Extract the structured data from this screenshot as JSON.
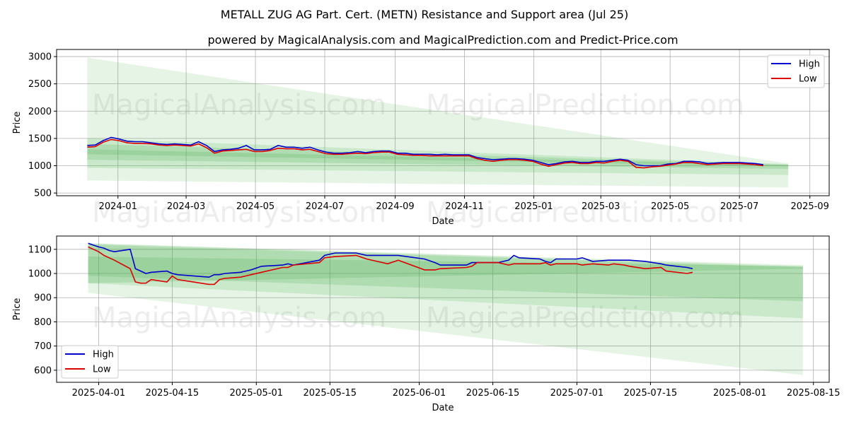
{
  "title": "METALL ZUG AG Part. Cert. (METN) Resistance and Support area (Jul 25)",
  "subtitle": "powered by MagicalAnalysis.com and MagicalPrediction.com and Predict-Price.com",
  "watermarks": [
    "MagicalAnalysis.com",
    "MagicalPrediction.com"
  ],
  "colors": {
    "high": "#0000cc",
    "low": "#dd0000",
    "band": "#4caf50",
    "grid": "#b0b0b0"
  },
  "chart_data": [
    {
      "type": "line",
      "xlabel": "Date",
      "ylabel": "Price",
      "xlim": [
        "2023-11-08",
        "2025-09-18"
      ],
      "ylim": [
        450,
        3130
      ],
      "xticks": [
        "2024-01",
        "2024-03",
        "2024-05",
        "2024-07",
        "2024-09",
        "2024-11",
        "2025-01",
        "2025-03",
        "2025-05",
        "2025-07",
        "2025-09"
      ],
      "yticks": [
        500,
        1000,
        1500,
        2000,
        2500,
        3000
      ],
      "legend": {
        "position": "top-right",
        "entries": [
          "High",
          "Low"
        ]
      },
      "grid": true,
      "bands": [
        {
          "x": [
            "2023-12-05",
            "2025-08-13"
          ],
          "upper": [
            2980,
            1040
          ],
          "lower": [
            730,
            600
          ],
          "opacity": 0.14
        },
        {
          "x": [
            "2023-12-05",
            "2025-08-13"
          ],
          "upper": [
            1500,
            1030
          ],
          "lower": [
            960,
            830
          ],
          "opacity": 0.18
        },
        {
          "x": [
            "2023-12-05",
            "2025-08-13"
          ],
          "upper": [
            1400,
            1020
          ],
          "lower": [
            1110,
            940
          ],
          "opacity": 0.2
        },
        {
          "x": [
            "2023-12-05",
            "2025-08-13"
          ],
          "upper": [
            1300,
            1010
          ],
          "lower": [
            1210,
            990
          ],
          "opacity": 0.22
        }
      ],
      "series": [
        {
          "name": "High",
          "x": [
            "2023-12-05",
            "2023-12-12",
            "2023-12-19",
            "2023-12-26",
            "2024-01-02",
            "2024-01-09",
            "2024-01-16",
            "2024-01-23",
            "2024-01-30",
            "2024-02-06",
            "2024-02-13",
            "2024-02-20",
            "2024-02-27",
            "2024-03-05",
            "2024-03-12",
            "2024-03-19",
            "2024-03-26",
            "2024-04-02",
            "2024-04-09",
            "2024-04-16",
            "2024-04-23",
            "2024-04-30",
            "2024-05-07",
            "2024-05-14",
            "2024-05-21",
            "2024-05-28",
            "2024-06-04",
            "2024-06-11",
            "2024-06-18",
            "2024-06-25",
            "2024-07-02",
            "2024-07-09",
            "2024-07-16",
            "2024-07-23",
            "2024-07-30",
            "2024-08-06",
            "2024-08-13",
            "2024-08-20",
            "2024-08-27",
            "2024-09-03",
            "2024-09-10",
            "2024-09-17",
            "2024-09-24",
            "2024-10-01",
            "2024-10-08",
            "2024-10-15",
            "2024-10-22",
            "2024-10-29",
            "2024-11-05",
            "2024-11-12",
            "2024-11-19",
            "2024-11-26",
            "2024-12-03",
            "2024-12-10",
            "2024-12-17",
            "2024-12-24",
            "2024-12-31",
            "2025-01-07",
            "2025-01-14",
            "2025-01-21",
            "2025-01-28",
            "2025-02-04",
            "2025-02-11",
            "2025-02-18",
            "2025-02-25",
            "2025-03-04",
            "2025-03-11",
            "2025-03-18",
            "2025-03-25",
            "2025-04-01",
            "2025-04-08",
            "2025-04-15",
            "2025-04-22",
            "2025-04-29",
            "2025-05-06",
            "2025-05-13",
            "2025-05-20",
            "2025-05-27",
            "2025-06-03",
            "2025-06-10",
            "2025-06-17",
            "2025-06-24",
            "2025-07-01",
            "2025-07-08",
            "2025-07-15",
            "2025-07-22"
          ],
          "y": [
            1370,
            1380,
            1460,
            1520,
            1490,
            1450,
            1440,
            1440,
            1420,
            1400,
            1390,
            1400,
            1390,
            1380,
            1440,
            1370,
            1260,
            1290,
            1300,
            1320,
            1370,
            1290,
            1290,
            1300,
            1370,
            1340,
            1340,
            1320,
            1340,
            1290,
            1250,
            1230,
            1230,
            1240,
            1260,
            1240,
            1260,
            1270,
            1270,
            1230,
            1230,
            1210,
            1210,
            1210,
            1200,
            1210,
            1200,
            1200,
            1200,
            1150,
            1130,
            1110,
            1120,
            1130,
            1130,
            1120,
            1100,
            1060,
            1020,
            1040,
            1070,
            1080,
            1060,
            1060,
            1080,
            1080,
            1100,
            1120,
            1100,
            1020,
            1000,
            1000,
            1000,
            1030,
            1040,
            1080,
            1080,
            1070,
            1040,
            1050,
            1060,
            1060,
            1060,
            1050,
            1040,
            1020
          ]
        },
        {
          "name": "Low",
          "x": [
            "2023-12-05",
            "2023-12-12",
            "2023-12-19",
            "2023-12-26",
            "2024-01-02",
            "2024-01-09",
            "2024-01-16",
            "2024-01-23",
            "2024-01-30",
            "2024-02-06",
            "2024-02-13",
            "2024-02-20",
            "2024-02-27",
            "2024-03-05",
            "2024-03-12",
            "2024-03-19",
            "2024-03-26",
            "2024-04-02",
            "2024-04-09",
            "2024-04-16",
            "2024-04-23",
            "2024-04-30",
            "2024-05-07",
            "2024-05-14",
            "2024-05-21",
            "2024-05-28",
            "2024-06-04",
            "2024-06-11",
            "2024-06-18",
            "2024-06-25",
            "2024-07-02",
            "2024-07-09",
            "2024-07-16",
            "2024-07-23",
            "2024-07-30",
            "2024-08-06",
            "2024-08-13",
            "2024-08-20",
            "2024-08-27",
            "2024-09-03",
            "2024-09-10",
            "2024-09-17",
            "2024-09-24",
            "2024-10-01",
            "2024-10-08",
            "2024-10-15",
            "2024-10-22",
            "2024-10-29",
            "2024-11-05",
            "2024-11-12",
            "2024-11-19",
            "2024-11-26",
            "2024-12-03",
            "2024-12-10",
            "2024-12-17",
            "2024-12-24",
            "2024-12-31",
            "2025-01-07",
            "2025-01-14",
            "2025-01-21",
            "2025-01-28",
            "2025-02-04",
            "2025-02-11",
            "2025-02-18",
            "2025-02-25",
            "2025-03-04",
            "2025-03-11",
            "2025-03-18",
            "2025-03-25",
            "2025-04-01",
            "2025-04-08",
            "2025-04-15",
            "2025-04-22",
            "2025-04-29",
            "2025-05-06",
            "2025-05-13",
            "2025-05-20",
            "2025-05-27",
            "2025-06-03",
            "2025-06-10",
            "2025-06-17",
            "2025-06-24",
            "2025-07-01",
            "2025-07-08",
            "2025-07-15",
            "2025-07-22"
          ],
          "y": [
            1340,
            1350,
            1430,
            1480,
            1460,
            1420,
            1410,
            1410,
            1400,
            1380,
            1370,
            1380,
            1370,
            1360,
            1400,
            1330,
            1230,
            1270,
            1280,
            1290,
            1300,
            1260,
            1260,
            1280,
            1320,
            1310,
            1310,
            1290,
            1300,
            1260,
            1220,
            1210,
            1210,
            1220,
            1230,
            1220,
            1240,
            1250,
            1250,
            1210,
            1200,
            1190,
            1190,
            1180,
            1180,
            1180,
            1180,
            1180,
            1180,
            1130,
            1100,
            1080,
            1100,
            1110,
            1110,
            1100,
            1080,
            1030,
            990,
            1020,
            1050,
            1060,
            1040,
            1040,
            1060,
            1050,
            1080,
            1100,
            1080,
            970,
            960,
            980,
            990,
            1010,
            1030,
            1060,
            1060,
            1040,
            1020,
            1030,
            1040,
            1040,
            1040,
            1030,
            1020,
            1000
          ]
        }
      ]
    },
    {
      "type": "line",
      "xlabel": "Date",
      "ylabel": "Price",
      "xlim": [
        "2025-03-24",
        "2025-08-18"
      ],
      "ylim": [
        550,
        1155
      ],
      "xticks": [
        "2025-04-01",
        "2025-04-15",
        "2025-05-01",
        "2025-05-15",
        "2025-06-01",
        "2025-06-15",
        "2025-07-01",
        "2025-07-15",
        "2025-08-01",
        "2025-08-15"
      ],
      "yticks": [
        600,
        700,
        800,
        900,
        1000,
        1100
      ],
      "legend": {
        "position": "bottom-left",
        "entries": [
          "High",
          "Low"
        ]
      },
      "grid": true,
      "bands": [
        {
          "x": [
            "2025-03-30",
            "2025-08-13"
          ],
          "upper": [
            1125,
            1035
          ],
          "lower": [
            920,
            580
          ],
          "opacity": 0.14
        },
        {
          "x": [
            "2025-03-30",
            "2025-08-13"
          ],
          "upper": [
            1125,
            1030
          ],
          "lower": [
            960,
            815
          ],
          "opacity": 0.18
        },
        {
          "x": [
            "2025-03-30",
            "2025-08-13"
          ],
          "upper": [
            1120,
            1025
          ],
          "lower": [
            990,
            885
          ],
          "opacity": 0.2
        },
        {
          "x": [
            "2025-03-30",
            "2025-08-13"
          ],
          "upper": [
            1070,
            1030
          ],
          "lower": [
            960,
            1020
          ],
          "opacity": 0.22
        }
      ],
      "series": [
        {
          "name": "High",
          "x": [
            "2025-03-30",
            "2025-04-01",
            "2025-04-02",
            "2025-04-03",
            "2025-04-04",
            "2025-04-07",
            "2025-04-08",
            "2025-04-09",
            "2025-04-10",
            "2025-04-11",
            "2025-04-14",
            "2025-04-15",
            "2025-04-16",
            "2025-04-22",
            "2025-04-23",
            "2025-04-24",
            "2025-04-25",
            "2025-04-28",
            "2025-04-29",
            "2025-04-30",
            "2025-05-02",
            "2025-05-06",
            "2025-05-07",
            "2025-05-08",
            "2025-05-13",
            "2025-05-14",
            "2025-05-16",
            "2025-05-20",
            "2025-05-22",
            "2025-05-26",
            "2025-05-28",
            "2025-06-02",
            "2025-06-04",
            "2025-06-05",
            "2025-06-10",
            "2025-06-11",
            "2025-06-12",
            "2025-06-16",
            "2025-06-18",
            "2025-06-19",
            "2025-06-20",
            "2025-06-24",
            "2025-06-25",
            "2025-06-26",
            "2025-06-27",
            "2025-06-30",
            "2025-07-01",
            "2025-07-02",
            "2025-07-04",
            "2025-07-07",
            "2025-07-08",
            "2025-07-10",
            "2025-07-11",
            "2025-07-14",
            "2025-07-17",
            "2025-07-18",
            "2025-07-22",
            "2025-07-23"
          ],
          "y": [
            1125,
            1110,
            1105,
            1095,
            1090,
            1100,
            1020,
            1010,
            1000,
            1005,
            1010,
            1000,
            995,
            985,
            995,
            995,
            1000,
            1005,
            1010,
            1015,
            1030,
            1035,
            1040,
            1035,
            1055,
            1075,
            1085,
            1085,
            1075,
            1075,
            1075,
            1060,
            1045,
            1035,
            1035,
            1045,
            1045,
            1045,
            1055,
            1075,
            1065,
            1060,
            1050,
            1045,
            1060,
            1060,
            1060,
            1065,
            1050,
            1055,
            1055,
            1055,
            1055,
            1050,
            1040,
            1035,
            1025,
            1020
          ]
        },
        {
          "name": "Low",
          "x": [
            "2025-03-30",
            "2025-04-01",
            "2025-04-02",
            "2025-04-03",
            "2025-04-04",
            "2025-04-07",
            "2025-04-08",
            "2025-04-09",
            "2025-04-10",
            "2025-04-11",
            "2025-04-14",
            "2025-04-15",
            "2025-04-16",
            "2025-04-22",
            "2025-04-23",
            "2025-04-24",
            "2025-04-25",
            "2025-04-28",
            "2025-04-29",
            "2025-04-30",
            "2025-05-02",
            "2025-05-06",
            "2025-05-07",
            "2025-05-08",
            "2025-05-13",
            "2025-05-14",
            "2025-05-16",
            "2025-05-20",
            "2025-05-22",
            "2025-05-26",
            "2025-05-28",
            "2025-06-02",
            "2025-06-04",
            "2025-06-05",
            "2025-06-10",
            "2025-06-11",
            "2025-06-12",
            "2025-06-16",
            "2025-06-18",
            "2025-06-19",
            "2025-06-20",
            "2025-06-24",
            "2025-06-25",
            "2025-06-26",
            "2025-06-27",
            "2025-06-30",
            "2025-07-01",
            "2025-07-02",
            "2025-07-04",
            "2025-07-07",
            "2025-07-08",
            "2025-07-10",
            "2025-07-11",
            "2025-07-14",
            "2025-07-17",
            "2025-07-18",
            "2025-07-22",
            "2025-07-23"
          ],
          "y": [
            1110,
            1090,
            1075,
            1065,
            1055,
            1020,
            965,
            960,
            960,
            975,
            965,
            990,
            975,
            955,
            955,
            975,
            980,
            985,
            990,
            995,
            1005,
            1025,
            1025,
            1035,
            1045,
            1065,
            1070,
            1075,
            1060,
            1040,
            1055,
            1015,
            1015,
            1020,
            1025,
            1030,
            1045,
            1045,
            1035,
            1040,
            1040,
            1040,
            1045,
            1035,
            1040,
            1040,
            1040,
            1035,
            1040,
            1035,
            1040,
            1035,
            1030,
            1020,
            1025,
            1010,
            1000,
            1005
          ]
        }
      ]
    }
  ]
}
